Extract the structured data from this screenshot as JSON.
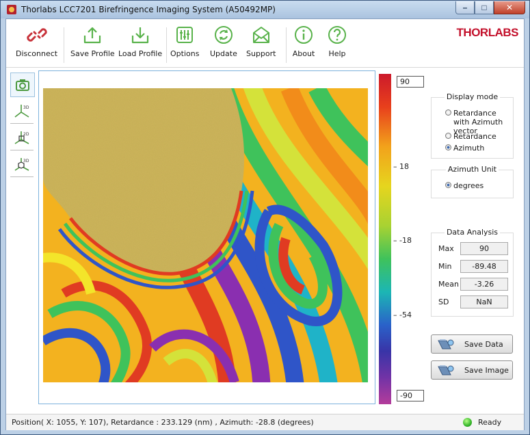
{
  "window": {
    "title": "Thorlabs LCC7201 Birefringence Imaging System (A50492MP)",
    "controls": [
      "minimize-icon",
      "maximize-icon",
      "close-icon"
    ]
  },
  "brand": "THORLABS",
  "toolbar": {
    "items": [
      {
        "label": "Disconnect",
        "icon": "disconnect-icon"
      },
      {
        "label": "Save Profile",
        "icon": "save-profile-icon"
      },
      {
        "label": "Load Profile",
        "icon": "load-profile-icon"
      },
      {
        "label": "Options",
        "icon": "options-icon"
      },
      {
        "label": "Update",
        "icon": "update-icon"
      },
      {
        "label": "Support",
        "icon": "support-icon"
      },
      {
        "label": "About",
        "icon": "info-icon"
      },
      {
        "label": "Help",
        "icon": "help-icon"
      }
    ]
  },
  "side_tools": [
    "camera-icon",
    "view-3d-axes-icon",
    "view-2d-axes-icon",
    "view-3d-cube-icon"
  ],
  "colorbar": {
    "max_value": "90",
    "min_value": "-90",
    "tick_labels": [
      "18",
      "-18",
      "-54"
    ]
  },
  "display_mode": {
    "title": "Display mode",
    "options": [
      "Retardance with Azimuth vector",
      "Retardance",
      "Azimuth"
    ],
    "selected": "Azimuth"
  },
  "azimuth_unit": {
    "title": "Azimuth Unit",
    "option": "degrees"
  },
  "data_analysis": {
    "title": "Data Analysis",
    "rows": [
      {
        "label": "Max",
        "value": "90"
      },
      {
        "label": "Min",
        "value": "-89.48"
      },
      {
        "label": "Mean",
        "value": "-3.26"
      },
      {
        "label": "SD",
        "value": "NaN"
      }
    ]
  },
  "buttons": {
    "save_data": "Save Data",
    "save_image": "Save Image"
  },
  "status": {
    "position": "Position( X: 1055, Y: 107), Retardance : 233.129 (nm) , Azimuth: -28.8 (degrees)",
    "state": "Ready"
  }
}
